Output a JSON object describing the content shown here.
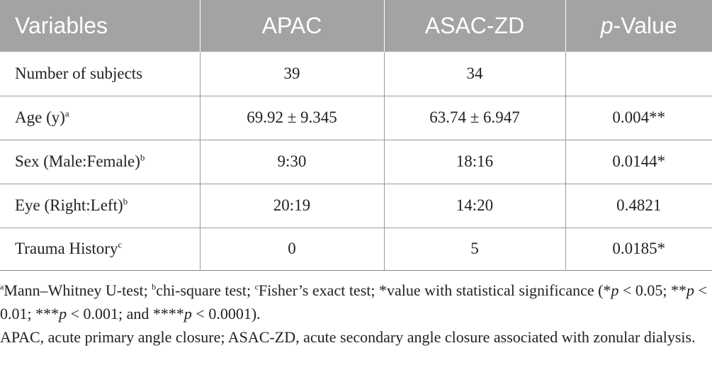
{
  "table": {
    "headers": [
      "Variables",
      "APAC",
      "ASAC-ZD",
      "p",
      "-Value"
    ],
    "rows": [
      {
        "label": "Number of subjects",
        "sup": "",
        "apac": "39",
        "asac": "34",
        "p": ""
      },
      {
        "label": "Age (y)",
        "sup": "a",
        "apac": "69.92 ± 9.345",
        "asac": "63.74 ± 6.947",
        "p": "0.004**"
      },
      {
        "label": "Sex (Male:Female)",
        "sup": "b",
        "apac": "9:30",
        "asac": "18:16",
        "p": "0.0144*"
      },
      {
        "label": "Eye (Right:Left)",
        "sup": "b",
        "apac": "20:19",
        "asac": "14:20",
        "p": "0.4821"
      },
      {
        "label": "Trauma History",
        "sup": "c",
        "apac": "0",
        "asac": "5",
        "p": "0.0185*"
      }
    ]
  },
  "footnote": {
    "sup_a": "a",
    "text_a": "Mann–Whitney U-test; ",
    "sup_b": "b",
    "text_b": "chi-square test; ",
    "sup_c": "c",
    "text_c": "Fisher’s exact test; *value with statistical significance (*",
    "p1": "p",
    "t1": " < 0.05; **",
    "p2": "p",
    "t2": " < 0.01; ***",
    "p3": "p",
    "t3": " < 0.001; and ****",
    "p4": "p",
    "t4": " < 0.0001).",
    "abbreviations": "APAC, acute primary angle closure; ASAC-ZD, acute secondary angle closure associated with zonular dialysis."
  }
}
